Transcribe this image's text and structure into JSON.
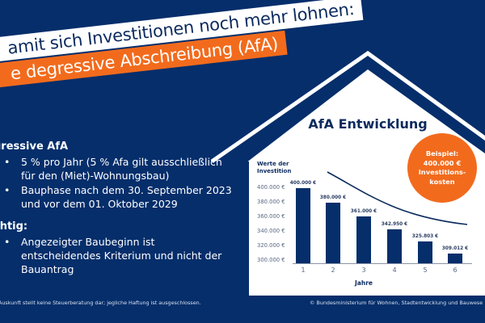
{
  "headline": {
    "line1": "amit sich Investitionen noch mehr lohnen:",
    "line2": "e degressive Abschreibung (AfA)"
  },
  "left_panel": {
    "section1": {
      "title": "gressive AfA",
      "bullets": [
        "5 % pro Jahr (5 % Afa gilt ausschließlich für den (Miet)-Wohnungsbau)",
        "Bauphase nach dem 30. September 2023 und vor dem 01. Oktober 2029"
      ]
    },
    "section2": {
      "title": "chtig:",
      "bullets": [
        "Angezeigter Baubeginn ist entscheidendes Kriterium und nicht der Bauantrag"
      ]
    }
  },
  "footer": {
    "disclaimer": "Auskunft stellt keine Steuerberatung dar; jegliche Haftung ist ausgeschlossen.",
    "copyright": "© Bundesministerium für Wohnen, Stadtentwicklung und Bauwese"
  },
  "badge": {
    "line1": "Beispiel:",
    "line2": "400.000 €",
    "line3": "Investitions-",
    "line4": "kosten"
  },
  "colors": {
    "background": "#052e6b",
    "accent": "#f26b1d",
    "bar": "#052e6b",
    "house": "#ffffff"
  },
  "chart_data": {
    "type": "bar",
    "title": "AfA Entwicklung",
    "xlabel": "Jahre",
    "ylabel": "Werte der Investition",
    "categories": [
      "1",
      "2",
      "3",
      "4",
      "5",
      "6"
    ],
    "values": [
      400000,
      380000,
      361000,
      342950,
      325803,
      309012
    ],
    "value_labels": [
      "400.000 €",
      "380.000 €",
      "361.000 €",
      "342.950 €",
      "325.803 €",
      "309.012 €"
    ],
    "yticks": [
      "400.000 €",
      "380.000 €",
      "360.000 €",
      "340.000 €",
      "320.000 €",
      "300.000 €"
    ],
    "ylim": [
      300000,
      400000
    ],
    "grid": false,
    "annotation": "decorative downward curve above bars",
    "legend": null
  }
}
